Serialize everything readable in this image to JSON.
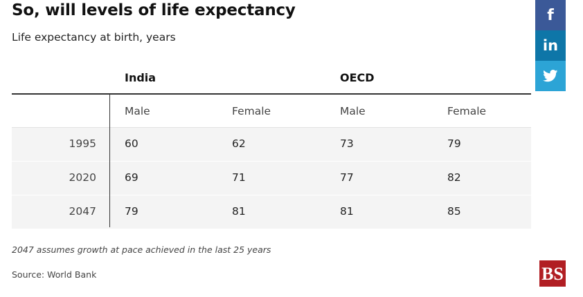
{
  "title": "So, will levels of life expectancy",
  "subtitle": "Life expectancy at birth, years",
  "chart_data": {
    "type": "table",
    "title": "So, will levels of life expectancy",
    "subtitle": "Life expectancy at birth, years",
    "groups": [
      "India",
      "OECD"
    ],
    "columns": [
      "Male",
      "Female",
      "Male",
      "Female"
    ],
    "rows": [
      {
        "year": "1995",
        "values": [
          "60",
          "62",
          "73",
          "79"
        ]
      },
      {
        "year": "2020",
        "values": [
          "69",
          "71",
          "77",
          "82"
        ]
      },
      {
        "year": "2047",
        "values": [
          "79",
          "81",
          "81",
          "85"
        ]
      }
    ]
  },
  "note": "2047 assumes growth at pace achieved in the last 25 years",
  "source": "Source: World Bank",
  "share": {
    "facebook_glyph": "f",
    "linkedin_glyph": "in",
    "icons": [
      "facebook-icon",
      "linkedin-icon",
      "twitter-icon"
    ]
  },
  "logo": {
    "text": "BS",
    "color": "#b11e23"
  },
  "colors": {
    "facebook": "#3b5998",
    "linkedin": "#0e76a8",
    "twitter": "#2ca4d6",
    "row_shade": "#f4f4f4"
  }
}
